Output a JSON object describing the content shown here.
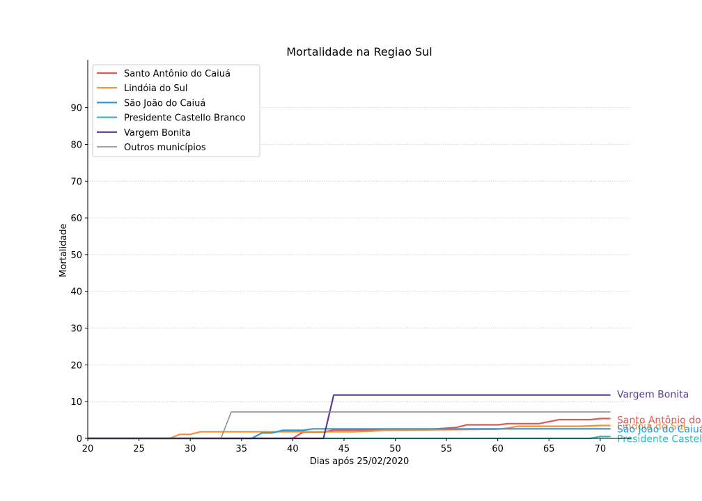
{
  "chart_data": {
    "type": "line",
    "title": "Mortalidade na Regiao Sul",
    "xlabel": "Dias após 25/02/2020",
    "ylabel": "Mortalidade",
    "xlim": [
      20,
      73
    ],
    "ylim": [
      0,
      103
    ],
    "x_ticks": [
      20,
      25,
      30,
      35,
      40,
      45,
      50,
      55,
      60,
      65,
      70
    ],
    "y_ticks": [
      0,
      10,
      20,
      30,
      40,
      50,
      60,
      70,
      80,
      90
    ],
    "grid": "horizontal dotted",
    "legend_position": "top-left",
    "series": [
      {
        "name": "Santo Antônio do Caiuá",
        "color": "#e05a55",
        "end_label": "Santo Antônio do Caiuá",
        "points": [
          [
            20,
            0
          ],
          [
            40,
            0
          ],
          [
            41,
            1.7
          ],
          [
            43,
            1.7
          ],
          [
            44,
            2.3
          ],
          [
            53,
            2.3
          ],
          [
            54,
            2.6
          ],
          [
            56,
            3
          ],
          [
            57,
            3.7
          ],
          [
            60,
            3.7
          ],
          [
            61,
            4
          ],
          [
            64,
            4
          ],
          [
            66,
            5.1
          ],
          [
            69,
            5.1
          ],
          [
            70,
            5.4
          ],
          [
            71,
            5.4
          ]
        ]
      },
      {
        "name": "Lindóia do Sul",
        "color": "#f0913a",
        "end_label": "Lindóia do Sul",
        "points": [
          [
            20,
            0
          ],
          [
            28,
            0
          ],
          [
            29,
            1.1
          ],
          [
            30,
            1.1
          ],
          [
            31,
            1.8
          ],
          [
            46,
            1.8
          ],
          [
            48,
            2
          ],
          [
            49,
            2.2
          ],
          [
            60,
            2.5
          ],
          [
            61,
            2.8
          ],
          [
            62,
            3.3
          ],
          [
            68,
            3.3
          ],
          [
            70,
            3.5
          ],
          [
            71,
            3.5
          ]
        ]
      },
      {
        "name": "São João do Caiuá",
        "color": "#2b9ad6",
        "end_label": "São João do Caiuá",
        "points": [
          [
            20,
            0
          ],
          [
            36,
            0
          ],
          [
            37,
            1.5
          ],
          [
            38,
            1.5
          ],
          [
            39,
            2.2
          ],
          [
            41,
            2.2
          ],
          [
            42,
            2.6
          ],
          [
            60,
            2.6
          ],
          [
            71,
            2.6
          ]
        ]
      },
      {
        "name": "Presidente Castello Branco",
        "color": "#2ebdbd",
        "end_label": "Presidente Castello Branco",
        "points": [
          [
            20,
            0
          ],
          [
            69,
            0
          ],
          [
            70,
            0.5
          ],
          [
            71,
            0.5
          ]
        ]
      },
      {
        "name": "Vargem Bonita",
        "color": "#5a3d91",
        "end_label": "Vargem Bonita",
        "points": [
          [
            20,
            0
          ],
          [
            43,
            0
          ],
          [
            44,
            11.8
          ],
          [
            71,
            11.8
          ]
        ]
      },
      {
        "name": "Outros municípios",
        "color": "#888888",
        "end_label": "",
        "points": [
          [
            20,
            0
          ],
          [
            33,
            0
          ],
          [
            34,
            7.2
          ],
          [
            71,
            7.2
          ]
        ]
      }
    ]
  }
}
